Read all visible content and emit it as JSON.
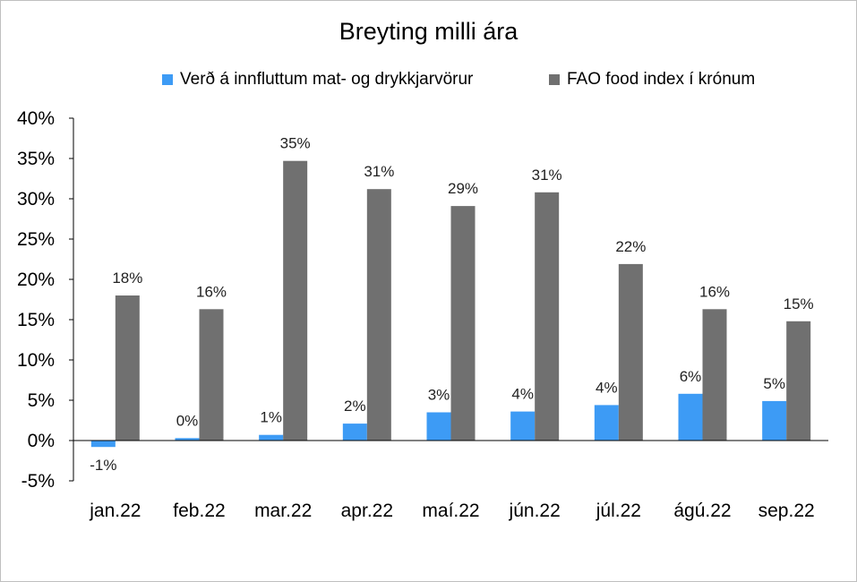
{
  "chart_data": {
    "type": "bar",
    "title": "Breyting milli ára",
    "xlabel": "",
    "ylabel": "",
    "categories": [
      "jan.22",
      "feb.22",
      "mar.22",
      "apr.22",
      "maí.22",
      "jún.22",
      "júl.22",
      "ágú.22",
      "sep.22"
    ],
    "series": [
      {
        "name": "Verð á innfluttum mat- og drykkjarvörur",
        "color": "#3d9bf5",
        "values": [
          -0.8,
          0.3,
          0.7,
          2.1,
          3.5,
          3.6,
          4.4,
          5.8,
          4.9
        ],
        "labels": [
          "-1%",
          "0%",
          "1%",
          "2%",
          "3%",
          "4%",
          "4%",
          "6%",
          "5%"
        ]
      },
      {
        "name": "FAO food index í krónum",
        "color": "#707070",
        "values": [
          18.0,
          16.3,
          34.7,
          31.2,
          29.1,
          30.8,
          21.9,
          16.3,
          14.8
        ],
        "labels": [
          "18%",
          "16%",
          "35%",
          "31%",
          "29%",
          "31%",
          "22%",
          "16%",
          "15%"
        ]
      }
    ],
    "ylim": [
      -5,
      40
    ],
    "yticks": [
      40,
      35,
      30,
      25,
      20,
      15,
      10,
      5,
      0,
      -5
    ],
    "ytick_labels": [
      "40%",
      "35%",
      "30%",
      "25%",
      "20%",
      "15%",
      "10%",
      "5%",
      "0%",
      "-5%"
    ],
    "grid": false,
    "legend_position": "top"
  }
}
